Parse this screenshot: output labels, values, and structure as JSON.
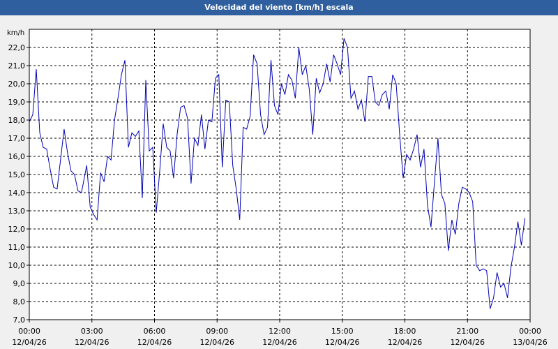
{
  "window": {
    "title": "Velocidad del viento [km/h] escala"
  },
  "colors": {
    "titlebar": "#2f5f9e",
    "line": "#0000b4",
    "grid": "#000000",
    "plot_bg": "#ffffff"
  },
  "chart_data": {
    "type": "line",
    "title": "Velocidad del viento [km/h] escala",
    "ylabel": "km/h",
    "xlabel": "",
    "ylim": [
      7.0,
      23.0
    ],
    "y_ticks": [
      "7,0",
      "8,0",
      "9,0",
      "10,0",
      "11,0",
      "12,0",
      "13,0",
      "14,0",
      "15,0",
      "16,0",
      "17,0",
      "18,0",
      "19,0",
      "20,0",
      "21,0",
      "22,0"
    ],
    "x_ticks": [
      {
        "time": "00:00",
        "date": "12/04/26"
      },
      {
        "time": "03:00",
        "date": "12/04/26"
      },
      {
        "time": "06:00",
        "date": "12/04/26"
      },
      {
        "time": "09:00",
        "date": "12/04/26"
      },
      {
        "time": "12:00",
        "date": "12/04/26"
      },
      {
        "time": "15:00",
        "date": "12/04/26"
      },
      {
        "time": "18:00",
        "date": "12/04/26"
      },
      {
        "time": "21:00",
        "date": "12/04/26"
      },
      {
        "time": "00:00",
        "date": "13/04/26"
      }
    ],
    "xlim": [
      "12/04/26 00:00",
      "13/04/26 00:00"
    ],
    "grid": true,
    "series": [
      {
        "values": [
          [
            "00:00",
            17.9
          ],
          [
            "00:10",
            18.3
          ],
          [
            "00:20",
            20.8
          ],
          [
            "00:30",
            17.3
          ],
          [
            "00:40",
            16.5
          ],
          [
            "00:50",
            16.4
          ],
          [
            "01:00",
            15.3
          ],
          [
            "01:10",
            14.3
          ],
          [
            "01:20",
            14.2
          ],
          [
            "01:40",
            17.5
          ],
          [
            "01:50",
            16.2
          ],
          [
            "02:00",
            15.2
          ],
          [
            "02:10",
            15.0
          ],
          [
            "02:20",
            14.1
          ],
          [
            "02:30",
            14.0
          ],
          [
            "02:45",
            15.5
          ],
          [
            "02:55",
            13.2
          ],
          [
            "03:05",
            12.8
          ],
          [
            "03:15",
            12.5
          ],
          [
            "03:25",
            15.1
          ],
          [
            "03:35",
            14.6
          ],
          [
            "03:45",
            16.0
          ],
          [
            "03:55",
            15.8
          ],
          [
            "04:05",
            18.0
          ],
          [
            "04:15",
            19.2
          ],
          [
            "04:25",
            20.5
          ],
          [
            "04:35",
            21.3
          ],
          [
            "04:45",
            16.5
          ],
          [
            "04:55",
            17.3
          ],
          [
            "05:05",
            17.1
          ],
          [
            "05:15",
            17.4
          ],
          [
            "05:25",
            13.7
          ],
          [
            "05:35",
            20.2
          ],
          [
            "05:45",
            16.3
          ],
          [
            "05:55",
            16.5
          ],
          [
            "06:05",
            12.9
          ],
          [
            "06:15",
            15.2
          ],
          [
            "06:25",
            17.8
          ],
          [
            "06:35",
            16.5
          ],
          [
            "06:45",
            16.3
          ],
          [
            "06:55",
            14.8
          ],
          [
            "07:05",
            17.2
          ],
          [
            "07:15",
            18.7
          ],
          [
            "07:25",
            18.8
          ],
          [
            "07:35",
            18.1
          ],
          [
            "07:45",
            14.5
          ],
          [
            "07:55",
            17.0
          ],
          [
            "08:05",
            16.6
          ],
          [
            "08:15",
            18.3
          ],
          [
            "08:25",
            16.4
          ],
          [
            "08:35",
            18.0
          ],
          [
            "08:45",
            17.9
          ],
          [
            "08:55",
            20.3
          ],
          [
            "09:05",
            20.5
          ],
          [
            "09:15",
            15.4
          ],
          [
            "09:25",
            19.1
          ],
          [
            "09:35",
            19.0
          ],
          [
            "09:45",
            15.5
          ],
          [
            "09:55",
            14.2
          ],
          [
            "10:05",
            12.5
          ],
          [
            "10:15",
            17.6
          ],
          [
            "10:25",
            17.5
          ],
          [
            "10:35",
            18.2
          ],
          [
            "10:45",
            21.6
          ],
          [
            "10:55",
            21.1
          ],
          [
            "11:05",
            18.3
          ],
          [
            "11:15",
            17.2
          ],
          [
            "11:25",
            17.6
          ],
          [
            "11:35",
            21.3
          ],
          [
            "11:45",
            18.8
          ],
          [
            "11:55",
            18.3
          ],
          [
            "12:05",
            20.0
          ],
          [
            "12:15",
            19.4
          ],
          [
            "12:25",
            20.5
          ],
          [
            "12:35",
            20.2
          ],
          [
            "12:45",
            19.2
          ],
          [
            "12:55",
            22.0
          ],
          [
            "13:05",
            20.5
          ],
          [
            "13:15",
            21.0
          ],
          [
            "13:25",
            19.7
          ],
          [
            "13:35",
            17.2
          ],
          [
            "13:45",
            20.3
          ],
          [
            "13:55",
            19.5
          ],
          [
            "14:05",
            20.0
          ],
          [
            "14:15",
            21.1
          ],
          [
            "14:25",
            20.1
          ],
          [
            "14:35",
            21.6
          ],
          [
            "14:45",
            21.1
          ],
          [
            "14:55",
            20.5
          ],
          [
            "15:05",
            22.5
          ],
          [
            "15:15",
            22.0
          ],
          [
            "15:25",
            19.2
          ],
          [
            "15:35",
            19.6
          ],
          [
            "15:45",
            18.6
          ],
          [
            "15:55",
            19.1
          ],
          [
            "16:05",
            17.9
          ],
          [
            "16:15",
            20.4
          ],
          [
            "16:25",
            20.4
          ],
          [
            "16:35",
            19.0
          ],
          [
            "16:45",
            18.8
          ],
          [
            "16:55",
            19.4
          ],
          [
            "17:05",
            19.6
          ],
          [
            "17:15",
            18.6
          ],
          [
            "17:25",
            20.5
          ],
          [
            "17:35",
            20.0
          ],
          [
            "17:45",
            17.2
          ],
          [
            "17:55",
            14.8
          ],
          [
            "18:05",
            16.1
          ],
          [
            "18:15",
            15.8
          ],
          [
            "18:25",
            16.4
          ],
          [
            "18:35",
            17.2
          ],
          [
            "18:45",
            15.4
          ],
          [
            "18:55",
            16.4
          ],
          [
            "19:05",
            13.3
          ],
          [
            "19:15",
            12.1
          ],
          [
            "19:25",
            14.6
          ],
          [
            "19:35",
            17.0
          ],
          [
            "19:45",
            13.9
          ],
          [
            "19:55",
            13.4
          ],
          [
            "20:05",
            10.8
          ],
          [
            "20:15",
            12.5
          ],
          [
            "20:25",
            11.7
          ],
          [
            "20:35",
            13.4
          ],
          [
            "20:45",
            14.3
          ],
          [
            "20:55",
            14.2
          ],
          [
            "21:05",
            14.0
          ],
          [
            "21:15",
            13.5
          ],
          [
            "21:25",
            10.0
          ],
          [
            "21:35",
            9.7
          ],
          [
            "21:45",
            9.8
          ],
          [
            "21:55",
            9.7
          ],
          [
            "22:05",
            7.6
          ],
          [
            "22:15",
            8.2
          ],
          [
            "22:25",
            9.6
          ],
          [
            "22:35",
            8.8
          ],
          [
            "22:45",
            9.0
          ],
          [
            "22:55",
            8.2
          ],
          [
            "23:05",
            9.9
          ],
          [
            "23:15",
            11.0
          ],
          [
            "23:25",
            12.4
          ],
          [
            "23:35",
            11.1
          ],
          [
            "23:45",
            12.6
          ]
        ]
      }
    ]
  }
}
